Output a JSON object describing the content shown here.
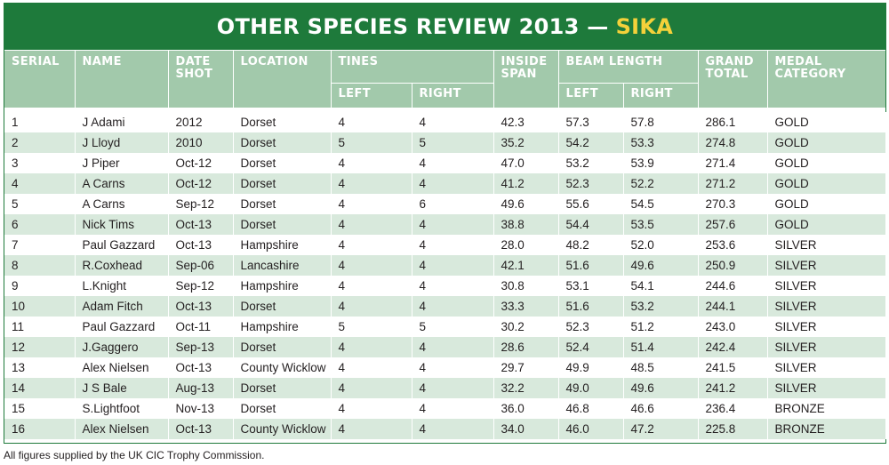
{
  "title": {
    "main": "OTHER SPECIES REVIEW 2013 —",
    "species": "SIKA"
  },
  "headers": {
    "serial": "SERIAL",
    "name": "NAME",
    "date_shot_line1": "DATE",
    "date_shot_line2": "SHOT",
    "location": "LOCATION",
    "tines": "TINES",
    "tines_left": "LEFT",
    "tines_right": "RIGHT",
    "inside_span_line1": "INSIDE",
    "inside_span_line2": "SPAN",
    "beam_length": "BEAM LENGTH",
    "beam_left": "LEFT",
    "beam_right": "RIGHT",
    "grand_total_line1": "GRAND",
    "grand_total_line2": "TOTAL",
    "medal_line1": "MEDAL",
    "medal_line2": "CATEGORY"
  },
  "rows": [
    [
      "1",
      "J Adami",
      "2012",
      "Dorset",
      "4",
      "4",
      "42.3",
      "57.3",
      "57.8",
      "286.1",
      "GOLD"
    ],
    [
      "2",
      "J Lloyd",
      "2010",
      "Dorset",
      "5",
      "5",
      "35.2",
      "54.2",
      "53.3",
      "274.8",
      "GOLD"
    ],
    [
      "3",
      "J Piper",
      "Oct-12",
      "Dorset",
      "4",
      "4",
      "47.0",
      "53.2",
      "53.9",
      "271.4",
      "GOLD"
    ],
    [
      "4",
      "A Carns",
      "Oct-12",
      "Dorset",
      "4",
      "4",
      "41.2",
      "52.3",
      "52.2",
      "271.2",
      "GOLD"
    ],
    [
      "5",
      "A Carns",
      "Sep-12",
      "Dorset",
      "4",
      "6",
      "49.6",
      "55.6",
      "54.5",
      "270.3",
      "GOLD"
    ],
    [
      "6",
      "Nick Tims",
      "Oct-13",
      "Dorset",
      "4",
      "4",
      "38.8",
      "54.4",
      "53.5",
      "257.6",
      "GOLD"
    ],
    [
      "7",
      "Paul Gazzard",
      "Oct-13",
      "Hampshire",
      "4",
      "4",
      "28.0",
      "48.2",
      "52.0",
      "253.6",
      "SILVER"
    ],
    [
      "8",
      "R.Coxhead",
      "Sep-06",
      "Lancashire",
      "4",
      "4",
      "42.1",
      "51.6",
      "49.6",
      "250.9",
      "SILVER"
    ],
    [
      "9",
      "L.Knight",
      "Sep-12",
      "Hampshire",
      "4",
      "4",
      "30.8",
      "53.1",
      "54.1",
      "244.6",
      "SILVER"
    ],
    [
      "10",
      "Adam Fitch",
      "Oct-13",
      "Dorset",
      "4",
      "4",
      "33.3",
      "51.6",
      "53.2",
      "244.1",
      "SILVER"
    ],
    [
      "11",
      "Paul Gazzard",
      "Oct-11",
      "Hampshire",
      "5",
      "5",
      "30.2",
      "52.3",
      "51.2",
      "243.0",
      "SILVER"
    ],
    [
      "12",
      "J.Gaggero",
      "Sep-13",
      "Dorset",
      "4",
      "4",
      "28.6",
      "52.4",
      "51.4",
      "242.4",
      "SILVER"
    ],
    [
      "13",
      "Alex Nielsen",
      "Oct-13",
      "County Wicklow",
      "4",
      "4",
      "29.7",
      "49.9",
      "48.5",
      "241.5",
      "SILVER"
    ],
    [
      "14",
      "J S Bale",
      "Aug-13",
      "Dorset",
      "4",
      "4",
      "32.2",
      "49.0",
      "49.6",
      "241.2",
      "SILVER"
    ],
    [
      "15",
      "S.Lightfoot",
      "Nov-13",
      "Dorset",
      "4",
      "4",
      "36.0",
      "46.8",
      "46.6",
      "236.4",
      "BRONZE"
    ],
    [
      "16",
      "Alex Nielsen",
      "Oct-13",
      "County Wicklow",
      "4",
      "4",
      "34.0",
      "46.0",
      "47.2",
      "225.8",
      "BRONZE"
    ]
  ],
  "footnote": "All figures supplied by the UK CIC Trophy Commission.",
  "colors": {
    "brand_green": "#1e7a3b",
    "header_green": "#a2c9ab",
    "stripe": "#d8e9dc",
    "accent_yellow": "#f4d13a"
  }
}
